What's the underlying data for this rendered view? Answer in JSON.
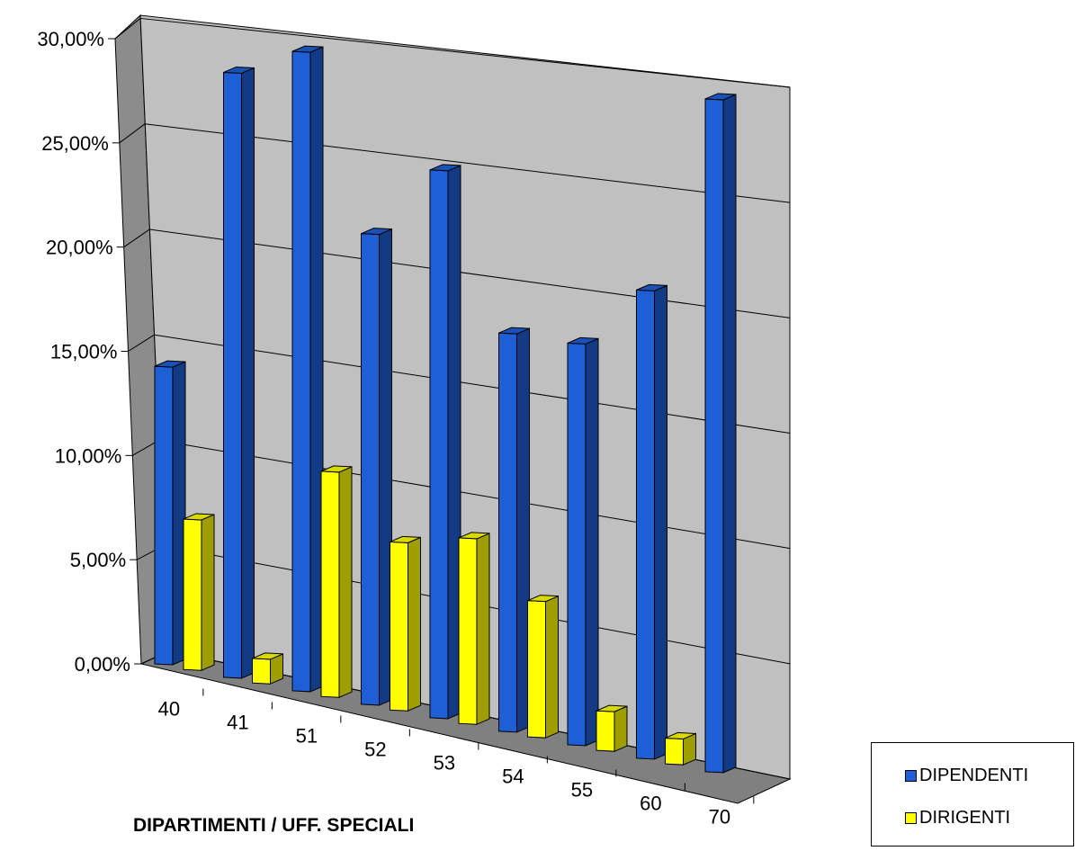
{
  "chart_data": {
    "type": "bar",
    "style": "3d-column",
    "categories": [
      "40",
      "41",
      "51",
      "52",
      "53",
      "54",
      "55",
      "60",
      "70"
    ],
    "series": [
      {
        "name": "DIPENDENTI",
        "color": "#1f5fd6",
        "values": [
          13.5,
          27.2,
          28.5,
          20.8,
          24.0,
          17.3,
          17.3,
          20.0,
          28.5
        ]
      },
      {
        "name": "DIRIGENTI",
        "color": "#ffff00",
        "values": [
          6.8,
          1.1,
          10.0,
          7.4,
          8.1,
          5.9,
          1.7,
          1.1,
          0
        ]
      }
    ],
    "yticks": [
      "0,00%",
      "5,00%",
      "10,00%",
      "15,00%",
      "20,00%",
      "25,00%",
      "30,00%"
    ],
    "ylim": [
      0,
      30
    ],
    "xlabel": "DIPARTIMENTI / UFF. SPECIALI",
    "ylabel": "",
    "grid": true,
    "legend": "bottom-right",
    "wall_color": "#c0c0c0",
    "floor_color": "#808080"
  }
}
